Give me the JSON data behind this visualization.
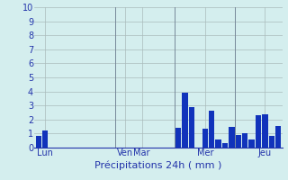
{
  "title": "",
  "xlabel": "Précipitations 24h ( mm )",
  "ylabel": "",
  "bg_color": "#d4eeee",
  "bar_color": "#1133bb",
  "grid_color": "#aabbbb",
  "axis_color": "#2233aa",
  "day_line_color": "#778899",
  "ylim": [
    0,
    10
  ],
  "yticks": [
    0,
    1,
    2,
    3,
    4,
    5,
    6,
    7,
    8,
    9,
    10
  ],
  "values": [
    0.85,
    1.2,
    0,
    0,
    0,
    0,
    0,
    0,
    0,
    0,
    0,
    0,
    0,
    0,
    0,
    0,
    0,
    0,
    0,
    0,
    0,
    1.4,
    3.9,
    2.9,
    0,
    1.35,
    2.6,
    0.55,
    0.35,
    1.5,
    0.9,
    1.0,
    0.55,
    2.3,
    2.4,
    0.85,
    1.55
  ],
  "n_slots": 37,
  "day_labels": [
    "Lun",
    "Ven",
    "Mar",
    "Mer",
    "Jeu"
  ],
  "day_label_slots": [
    1,
    13,
    15.5,
    25,
    34
  ],
  "day_line_slots": [
    11.5,
    20.5,
    29.5
  ],
  "xlabel_fontsize": 8,
  "ytick_fontsize": 7,
  "xtick_fontsize": 7
}
